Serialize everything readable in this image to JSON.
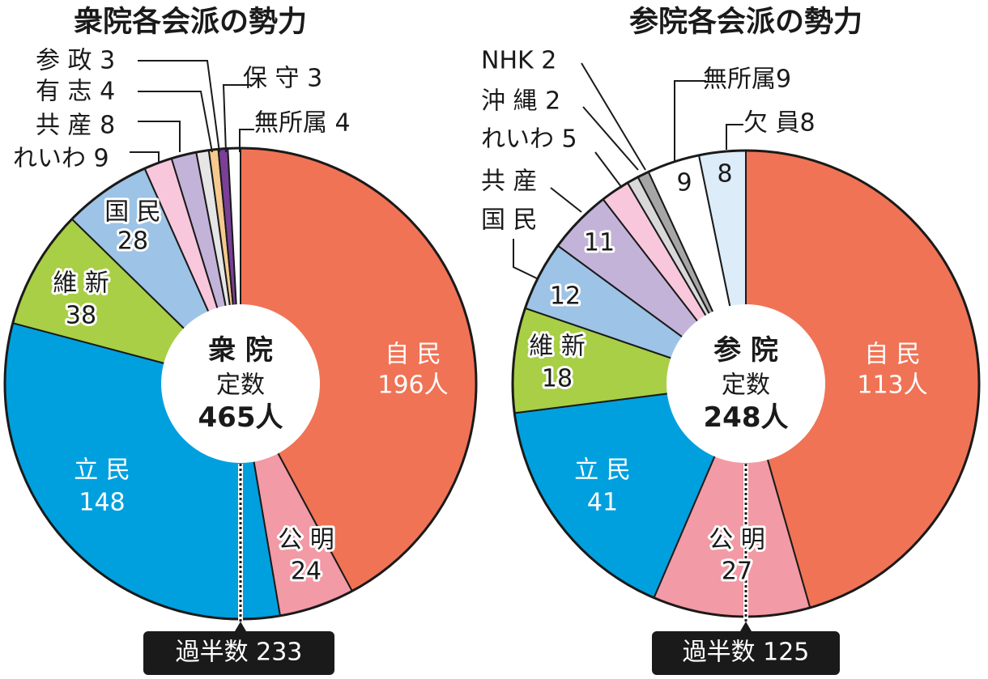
{
  "chart_data": [
    {
      "type": "pie",
      "title": "衆院各会派の勢力",
      "center_label": [
        "衆 院",
        "定数",
        "465人"
      ],
      "total": 465,
      "majority_label": "過半数 233",
      "majority": 233,
      "slices": [
        {
          "name": "自民",
          "value": 196,
          "label_lines": [
            "自 民",
            "196人"
          ],
          "color": "#f07356"
        },
        {
          "name": "公明",
          "value": 24,
          "label_lines": [
            "公 明",
            "24"
          ],
          "color": "#f29aa5"
        },
        {
          "name": "立民",
          "value": 148,
          "label_lines": [
            "立 民",
            "148"
          ],
          "color": "#00a0df"
        },
        {
          "name": "維新",
          "value": 38,
          "label_lines": [
            "維 新",
            "38"
          ],
          "color": "#a8cf45"
        },
        {
          "name": "国民",
          "value": 28,
          "label_lines": [
            "国 民",
            "28"
          ],
          "color": "#9dc3e6"
        },
        {
          "name": "れいわ",
          "value": 9,
          "callout": "れいわ 9",
          "color": "#f8c7dc"
        },
        {
          "name": "共産",
          "value": 8,
          "callout": "共 産 8",
          "color": "#c3b3d9"
        },
        {
          "name": "有志",
          "value": 4,
          "callout": "有 志 4",
          "color": "#e6e6e6"
        },
        {
          "name": "参政",
          "value": 3,
          "callout": "参 政 3",
          "color": "#f6c98f"
        },
        {
          "name": "保守",
          "value": 3,
          "callout": "保 守 3",
          "color": "#7b3f98"
        },
        {
          "name": "無所属",
          "value": 4,
          "callout": "無所属 4",
          "color": "#ffffff"
        }
      ]
    },
    {
      "type": "pie",
      "title": "参院各会派の勢力",
      "center_label": [
        "参 院",
        "定数",
        "248人"
      ],
      "total": 248,
      "majority_label": "過半数 125",
      "majority": 125,
      "slices": [
        {
          "name": "自民",
          "value": 113,
          "label_lines": [
            "自 民",
            "113人"
          ],
          "color": "#f07356"
        },
        {
          "name": "公明",
          "value": 27,
          "label_lines": [
            "公 明",
            "27"
          ],
          "color": "#f29aa5"
        },
        {
          "name": "立民",
          "value": 41,
          "label_lines": [
            "立 民",
            "41"
          ],
          "color": "#00a0df"
        },
        {
          "name": "維新",
          "value": 18,
          "label_lines": [
            "維 新",
            "18"
          ],
          "color": "#a8cf45"
        },
        {
          "name": "国民",
          "value": 12,
          "label_lines": [
            "12"
          ],
          "callout": "国 民",
          "color": "#9dc3e6"
        },
        {
          "name": "共産",
          "value": 11,
          "label_lines": [
            "11"
          ],
          "callout": "共 産",
          "color": "#c3b3d9"
        },
        {
          "name": "れいわ",
          "value": 5,
          "callout": "れいわ 5",
          "color": "#f8c7dc"
        },
        {
          "name": "沖縄",
          "value": 2,
          "callout": "沖 縄 2",
          "color": "#d9d9d9"
        },
        {
          "name": "NHK",
          "value": 2,
          "callout": "NHK 2",
          "color": "#a6a6a6"
        },
        {
          "name": "無所属",
          "value": 9,
          "label_lines": [
            "9"
          ],
          "callout": "無所属9",
          "color": "#ffffff"
        },
        {
          "name": "欠員",
          "value": 8,
          "label_lines": [
            "8"
          ],
          "callout": "欠 員8",
          "color": "#dcecf9"
        }
      ]
    }
  ]
}
